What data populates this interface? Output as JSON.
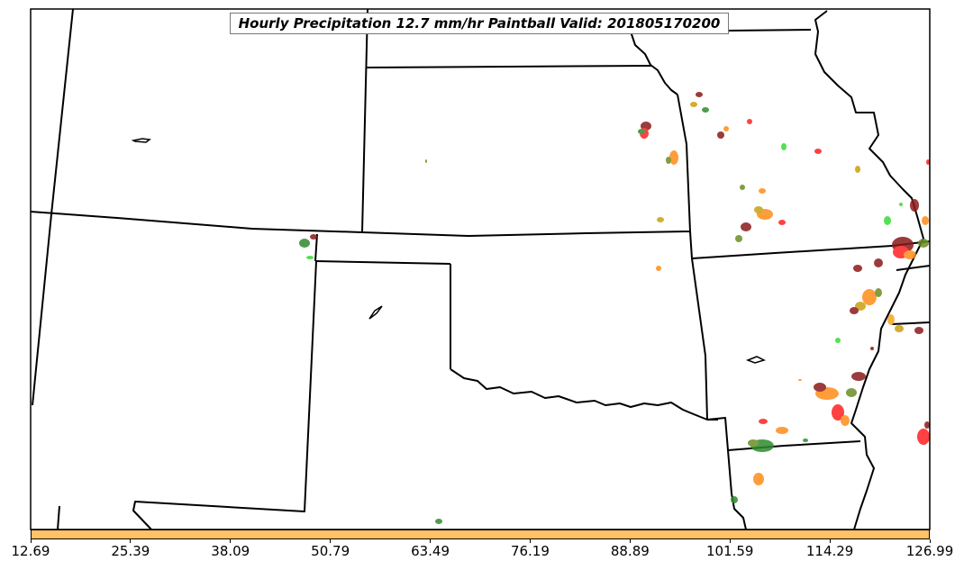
{
  "map": {
    "title": "Hourly Precipitation 12.7 mm/hr Paintball Valid: 201805170200",
    "region": "Southern Plains and Mississippi Valley, United States",
    "projection": "lambert-conformal",
    "line_color": "#000000",
    "land_color": "#ffffff",
    "paintball_colors": [
      "#8b1a1a",
      "#ff2020",
      "#ff8c1a",
      "#f5a623",
      "#c8a010",
      "#2e8b2e",
      "#33dd33",
      "#6b8e23"
    ]
  },
  "colorbar": {
    "color": "#ffc266",
    "tick_labels": [
      "12.69",
      "25.39",
      "38.09",
      "50.79",
      "63.49",
      "76.19",
      "88.89",
      "101.59",
      "114.29",
      "126.99"
    ]
  }
}
